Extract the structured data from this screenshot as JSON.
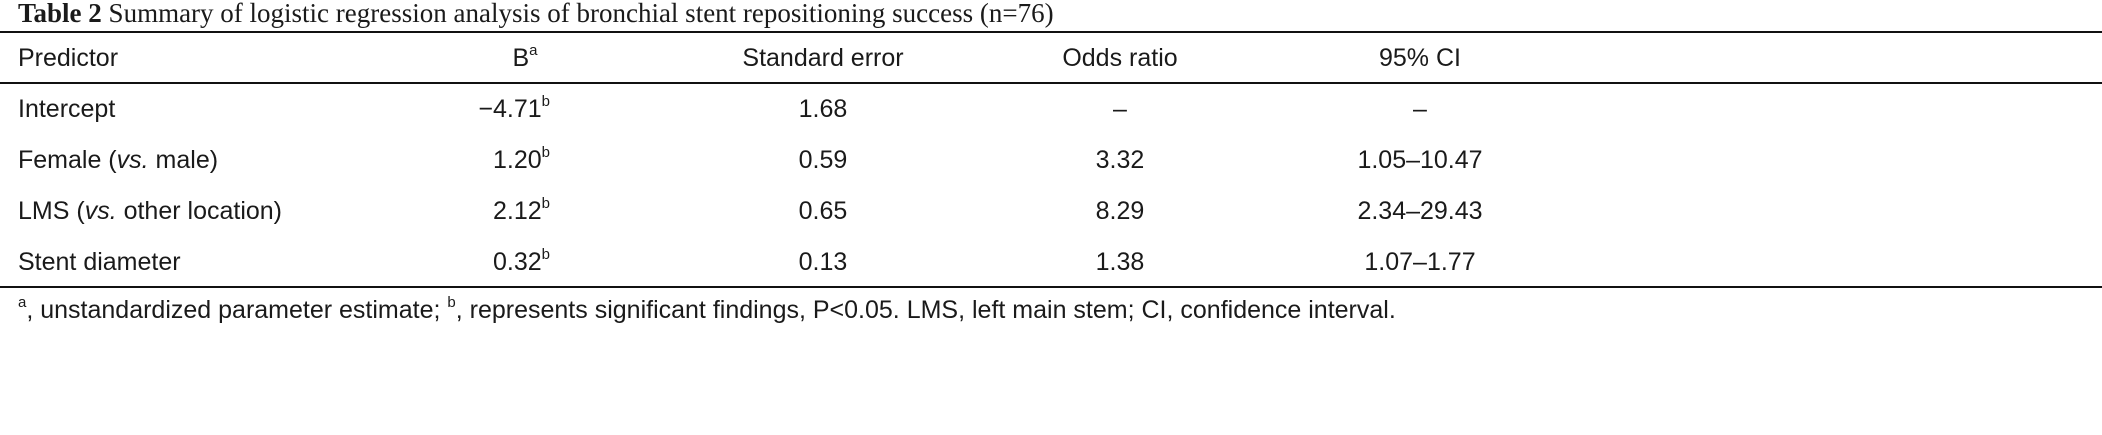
{
  "title": [
    {
      "text": "Table 2",
      "bold": true
    },
    {
      "text": " Summary of logistic regression analysis of bronchial stent repositioning success (n=76)"
    }
  ],
  "table": {
    "header": [
      [
        {
          "text": "Predictor"
        }
      ],
      [
        {
          "text": "B"
        },
        {
          "text": "a",
          "sup": true
        }
      ],
      [
        {
          "text": "Standard error"
        }
      ],
      [
        {
          "text": "Odds ratio"
        }
      ],
      [
        {
          "text": "95% CI"
        }
      ]
    ],
    "rows": [
      [
        [
          {
            "text": "Intercept"
          }
        ],
        [
          {
            "text": "−4.71"
          },
          {
            "text": "b",
            "sup": true
          }
        ],
        [
          {
            "text": "1.68"
          }
        ],
        [
          {
            "text": "–"
          }
        ],
        [
          {
            "text": "–"
          }
        ]
      ],
      [
        [
          {
            "text": "Female ("
          },
          {
            "text": "vs.",
            "italic": true
          },
          {
            "text": " male)"
          }
        ],
        [
          {
            "text": "1.20"
          },
          {
            "text": "b",
            "sup": true
          }
        ],
        [
          {
            "text": "0.59"
          }
        ],
        [
          {
            "text": "3.32"
          }
        ],
        [
          {
            "text": "1.05–10.47"
          }
        ]
      ],
      [
        [
          {
            "text": "LMS ("
          },
          {
            "text": "vs.",
            "italic": true
          },
          {
            "text": " other location)"
          }
        ],
        [
          {
            "text": "2.12"
          },
          {
            "text": "b",
            "sup": true
          }
        ],
        [
          {
            "text": "0.65"
          }
        ],
        [
          {
            "text": "8.29"
          }
        ],
        [
          {
            "text": "2.34–29.43"
          }
        ]
      ],
      [
        [
          {
            "text": "Stent diameter"
          }
        ],
        [
          {
            "text": "0.32"
          },
          {
            "text": "b",
            "sup": true
          }
        ],
        [
          {
            "text": "0.13"
          }
        ],
        [
          {
            "text": "1.38"
          }
        ],
        [
          {
            "text": "1.07–1.77"
          }
        ]
      ]
    ]
  },
  "footnote": [
    {
      "text": "a",
      "sup": true
    },
    {
      "text": ", unstandardized parameter estimate; "
    },
    {
      "text": "b",
      "sup": true
    },
    {
      "text": ", represents significant findings, P<0.05. LMS, left main stem; CI, confidence interval."
    }
  ]
}
